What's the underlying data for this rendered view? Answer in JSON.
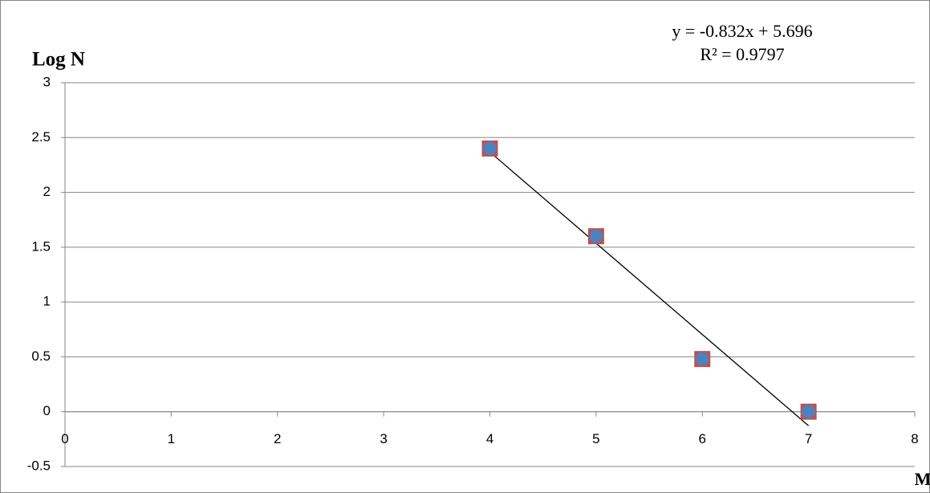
{
  "chart_data": {
    "type": "scatter",
    "y_label": "Log N",
    "x_label": "M",
    "x": [
      4,
      5,
      6,
      7
    ],
    "series": [
      {
        "color": "#c0504d",
        "marker": "square",
        "values": [
          2.4,
          1.6,
          0.48,
          0
        ]
      },
      {
        "color": "#4f81bd",
        "marker": "circle",
        "values": [
          2.4,
          1.6,
          0.48,
          0
        ]
      }
    ],
    "trendline": {
      "slope": -0.832,
      "intercept": 5.696,
      "equation": "y = -0.832x + 5.696",
      "r2_label": "R² = 0.9797",
      "color": "#000000"
    },
    "xlim": [
      0,
      8
    ],
    "xticks": [
      0,
      1,
      2,
      3,
      4,
      5,
      6,
      7,
      8
    ],
    "ylim": [
      -0.5,
      3
    ],
    "yticks": [
      -0.5,
      0,
      0.5,
      1,
      1.5,
      2,
      2.5,
      3
    ],
    "grid": true
  }
}
